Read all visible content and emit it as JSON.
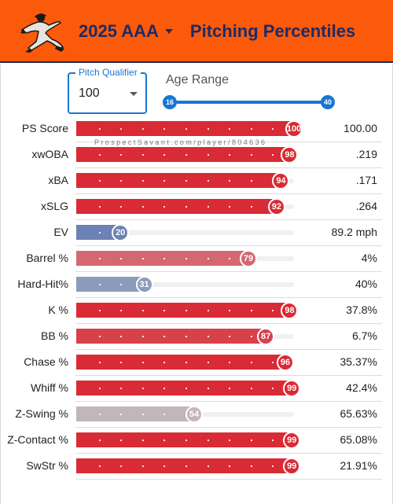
{
  "header": {
    "season": "2025 AAA",
    "title": "Pitching Percentiles",
    "background_color": "#fa5a0a",
    "text_color": "#1e2a66",
    "logo": "pitcher-silhouette-icon"
  },
  "controls": {
    "pitch_qualifier": {
      "label": "Pitch Qualifier",
      "value": "100"
    },
    "age_range": {
      "label": "Age Range",
      "min": "16",
      "max": "40"
    }
  },
  "watermark": "ProspectSavant.com/player/804636",
  "metrics": [
    {
      "label": "PS Score",
      "percentile": 100,
      "value": "100.00",
      "color": "#d92b35"
    },
    {
      "label": "xwOBA",
      "percentile": 98,
      "value": ".219",
      "color": "#d92b35"
    },
    {
      "label": "xBA",
      "percentile": 94,
      "value": ".171",
      "color": "#d92b35"
    },
    {
      "label": "xSLG",
      "percentile": 92,
      "value": ".264",
      "color": "#d92b35"
    },
    {
      "label": "EV",
      "percentile": 20,
      "value": "89.2 mph",
      "color": "#6d82b4"
    },
    {
      "label": "Barrel %",
      "percentile": 79,
      "value": "4%",
      "color": "#d46872"
    },
    {
      "label": "Hard-Hit%",
      "percentile": 31,
      "value": "40%",
      "color": "#8d9bbb"
    },
    {
      "label": "K %",
      "percentile": 98,
      "value": "37.8%",
      "color": "#d92b35"
    },
    {
      "label": "BB %",
      "percentile": 87,
      "value": "6.7%",
      "color": "#d6414c"
    },
    {
      "label": "Chase %",
      "percentile": 96,
      "value": "35.37%",
      "color": "#d92b35"
    },
    {
      "label": "Whiff %",
      "percentile": 99,
      "value": "42.4%",
      "color": "#d92b35"
    },
    {
      "label": "Z-Swing %",
      "percentile": 54,
      "value": "65.63%",
      "color": "#c2b6b8"
    },
    {
      "label": "Z-Contact %",
      "percentile": 99,
      "value": "65.08%",
      "color": "#d92b35"
    },
    {
      "label": "SwStr %",
      "percentile": 99,
      "value": "21.91%",
      "color": "#d92b35"
    }
  ]
}
